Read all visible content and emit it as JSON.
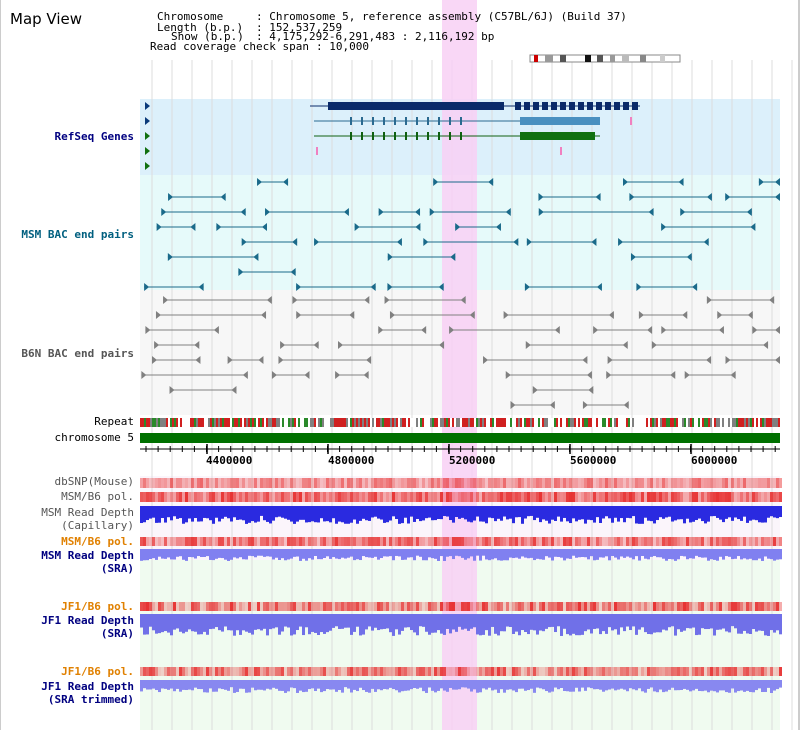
{
  "page": {
    "title": "Map View"
  },
  "info": {
    "chromosome_key": "Chromosome",
    "chromosome_val": ": Chromosome 5, reference assembly (C57BL/6J) (Build 37)",
    "length_key": "Length (b.p.)",
    "length_val": ": 152,537,259",
    "show_key": "Show (b.p.)",
    "show_val": ": 4,175,292-6,291,483 : 2,116,192 bp",
    "read_cov_key": "Read coverage check span",
    "read_cov_val": ": 10,000"
  },
  "tracks": {
    "refseq": "RefSeq Genes",
    "msm_bac": "MSM BAC end pairs",
    "b6n_bac": "B6N BAC end pairs",
    "repeat": "Repeat",
    "chromosome": "chromosome 5",
    "dbsnp": "dbSNP(Mouse)",
    "msm_b6_pol_1": "MSM/B6 pol.",
    "msm_read_depth_cap_1": "MSM Read Depth",
    "msm_read_depth_cap_2": "(Capillary)",
    "msm_b6_pol_2": "MSM/B6 pol.",
    "msm_read_depth_sra_1": "MSM Read Depth",
    "msm_read_depth_sra_2": "(SRA)",
    "jf1_b6_pol_1": "JF1/B6 pol.",
    "jf1_read_depth_sra_1": "JF1 Read Depth",
    "jf1_read_depth_sra_2": "(SRA)",
    "jf1_b6_pol_2": "JF1/B6 pol.",
    "jf1_read_depth_trim_1": "JF1 Read Depth",
    "jf1_read_depth_trim_2": "(SRA trimmed)"
  },
  "axis": {
    "ticks": [
      "4400000",
      "4800000",
      "5200000",
      "5600000",
      "6000000"
    ]
  },
  "colors": {
    "refseq_label": "#000080",
    "msm_bac_label": "#005f7f",
    "b6n_bac_label": "#555555",
    "orange_label": "#e08000",
    "blue_label": "#000080",
    "highlight": "#f8d0f4",
    "chromosome_bar": "#007000"
  }
}
